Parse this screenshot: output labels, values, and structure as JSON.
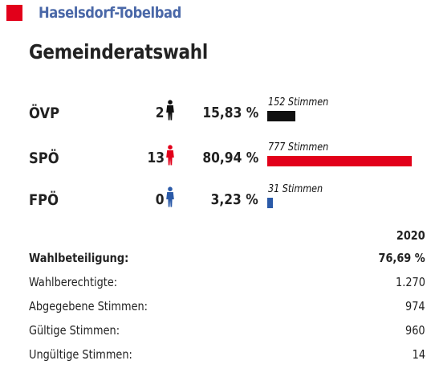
{
  "header": {
    "municipality": "Haselsdorf-Tobelbad",
    "title": "Gemeinderatswahl",
    "accent_color": "#e2001a",
    "muni_color": "#4a68a8"
  },
  "chart_data": {
    "type": "bar",
    "orientation": "horizontal",
    "categories": [
      "ÖVP",
      "SPÖ",
      "FPÖ"
    ],
    "series": [
      {
        "values": [
          152,
          777,
          31
        ]
      }
    ],
    "seats": [
      "2",
      "13",
      "0"
    ],
    "percentages": [
      "15,83 %",
      "80,94 %",
      "3,23 %"
    ],
    "bar_labels": [
      "152 Stimmen",
      "777 Stimmen",
      "31 Stimmen"
    ],
    "colors": [
      "#111111",
      "#e2001a",
      "#2b5aa8"
    ],
    "icons": [
      "person-icon",
      "person-icon",
      "person-icon"
    ]
  },
  "stats": {
    "year": "2020",
    "rows": [
      {
        "label": "Wahlbeteiligung:",
        "value": "76,69 %",
        "bold": true
      },
      {
        "label": "Wahlberechtigte:",
        "value": "1.270",
        "bold": false
      },
      {
        "label": "Abgegebene Stimmen:",
        "value": "974",
        "bold": false
      },
      {
        "label": "Gültige Stimmen:",
        "value": "960",
        "bold": false
      },
      {
        "label": "Ungültige Stimmen:",
        "value": "14",
        "bold": false
      }
    ]
  }
}
